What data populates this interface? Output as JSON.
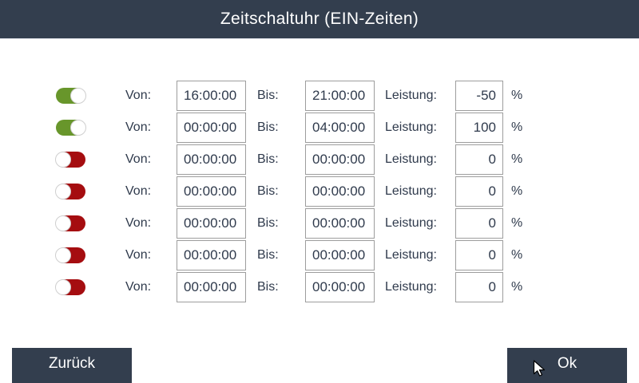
{
  "window": {
    "title": "Zeitschaltuhr (EIN-Zeiten)"
  },
  "labels": {
    "von": "Von:",
    "bis": "Bis:",
    "leistung": "Leistung:",
    "percent": "%"
  },
  "rows": [
    {
      "enabled": true,
      "von": "16:00:00",
      "bis": "21:00:00",
      "leistung": "-50"
    },
    {
      "enabled": true,
      "von": "00:00:00",
      "bis": "04:00:00",
      "leistung": "100"
    },
    {
      "enabled": false,
      "von": "00:00:00",
      "bis": "00:00:00",
      "leistung": "0"
    },
    {
      "enabled": false,
      "von": "00:00:00",
      "bis": "00:00:00",
      "leistung": "0"
    },
    {
      "enabled": false,
      "von": "00:00:00",
      "bis": "00:00:00",
      "leistung": "0"
    },
    {
      "enabled": false,
      "von": "00:00:00",
      "bis": "00:00:00",
      "leistung": "0"
    },
    {
      "enabled": false,
      "von": "00:00:00",
      "bis": "00:00:00",
      "leistung": "0"
    }
  ],
  "buttons": {
    "back": "Zurück",
    "ok": "Ok"
  },
  "colors": {
    "header_bg": "#333e4e",
    "text": "#2f3a4c",
    "toggle_on": "#68962b",
    "toggle_off": "#a50d10",
    "field_border": "#9d9d9d",
    "button_bg": "#333e4e",
    "button_text": "#ffffff"
  }
}
